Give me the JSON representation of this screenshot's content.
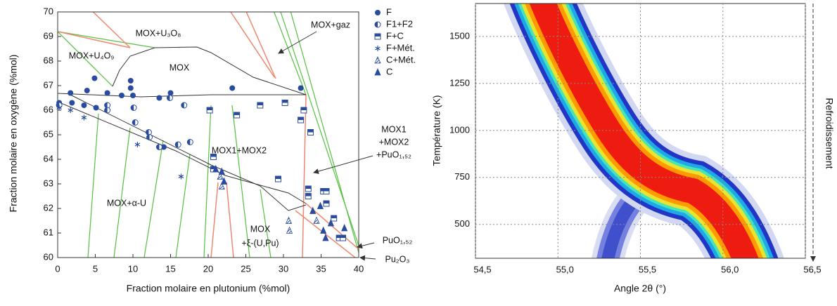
{
  "chart_data": [
    {
      "type": "scatter",
      "xlabel": "Fraction molaire en plutonium (%mol)",
      "ylabel": "Fraction molaire en oxygène (%mol)",
      "xlim": [
        0,
        40
      ],
      "ylim": [
        60,
        70
      ],
      "xticks": [
        0,
        5,
        10,
        15,
        20,
        25,
        30,
        35,
        40
      ],
      "yticks": [
        60,
        61,
        62,
        63,
        64,
        65,
        66,
        67,
        68,
        69,
        70
      ],
      "grid": false,
      "annotations": [
        "MOX+U₃O₈",
        "MOX+U₄O₉",
        "MOX",
        "MOX+gaz",
        "MOX1+MOX2",
        "MOX1",
        "+MOX2",
        "+PuO₁,₅₂",
        "MOX+α-U",
        "MOX",
        "+ξ-(U,Pu)",
        "PuO₁,₅₂",
        "Pu₂O₃"
      ],
      "series": [
        {
          "name": "F",
          "marker": "circle",
          "color": "#2a4c9e",
          "x": [
            4.9,
            9.7,
            9.7,
            3.9,
            1.7,
            6.6,
            8.5,
            10,
            13.5,
            15,
            23.2,
            32.3,
            1.9,
            3.5,
            5.1,
            14.1,
            0.2
          ],
          "values": [
            67.3,
            67.2,
            66.9,
            66.8,
            66.7,
            66.7,
            66.6,
            66.6,
            66.5,
            66.7,
            66.9,
            66.9,
            66.3,
            66.2,
            66.1,
            64.5,
            66.3
          ]
        },
        {
          "name": "F1+F2",
          "marker": "half-circle",
          "color": "#2a4c9e",
          "x": [
            6.6,
            6.6,
            10.1,
            10.3,
            12.1,
            12.2,
            13.5,
            14.9,
            16.8,
            16,
            17.6,
            0.2
          ],
          "values": [
            66.2,
            66.0,
            66.1,
            65.5,
            65.1,
            64.9,
            64.5,
            66.5,
            66.2,
            64.6,
            64.7,
            66.2
          ]
        },
        {
          "name": "F+C",
          "marker": "half-square",
          "color": "#2a4c9e",
          "x": [
            20.2,
            23.8,
            26.9,
            30.2,
            32.3,
            32.7,
            33.6,
            20.7,
            20.7,
            29.3,
            33.3,
            33.3,
            35.3,
            35.7,
            35.7,
            36.7,
            37.4,
            37.9
          ],
          "values": [
            66.0,
            65.8,
            66.2,
            66.3,
            65.6,
            66.0,
            65.1,
            64.1,
            63.6,
            63.2,
            62.8,
            62.5,
            62.7,
            62.7,
            62.2,
            61.6,
            60.8,
            60.8
          ]
        },
        {
          "name": "F+Mét.",
          "marker": "asterisk",
          "color": "#2a4c9e",
          "x": [
            0.2,
            1.7,
            3.5,
            10.6,
            16.4
          ],
          "values": [
            66.1,
            66.0,
            65.7,
            64.6,
            63.3
          ]
        },
        {
          "name": "C+Mét.",
          "marker": "striped-triangle",
          "color": "#2a4c9e",
          "x": [
            21.6,
            21.8,
            30.7,
            30.8,
            34.4
          ],
          "values": [
            63.3,
            62.9,
            61.5,
            61.1,
            61.5
          ]
        },
        {
          "name": "C",
          "marker": "triangle",
          "color": "#2a4c9e",
          "x": [
            21,
            21.8,
            22.1,
            33.9,
            34.9,
            36.3,
            35.3,
            35.6,
            38.1
          ],
          "values": [
            63.6,
            63.5,
            63.1,
            61.9,
            62.1,
            61.4,
            61.1,
            60.8,
            61.2
          ]
        }
      ]
    },
    {
      "type": "heatmap",
      "xlabel": "Angle 2θ (°)",
      "ylabel": "Température (K)",
      "annotation": "Refroidissement",
      "xlim": [
        54.5,
        56.5
      ],
      "ylim": [
        320,
        1675
      ],
      "xticks": [
        {
          "value": 54.5,
          "label": "54,5"
        },
        {
          "value": 55,
          "label": "55,0"
        },
        {
          "value": 55.5,
          "label": "55,5"
        },
        {
          "value": 56,
          "label": "56,0"
        },
        {
          "value": 56.5,
          "label": "56,5"
        }
      ],
      "yticks": [
        500,
        750,
        1000,
        1250,
        1500
      ],
      "grid": true
    }
  ]
}
